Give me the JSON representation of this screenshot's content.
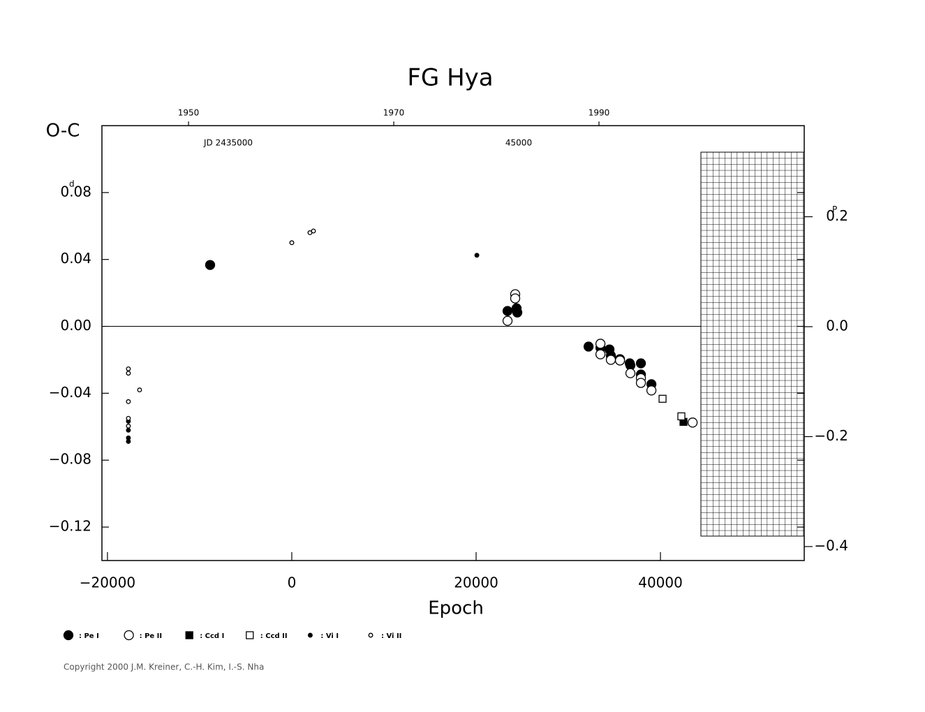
{
  "chart_data": {
    "type": "scatter",
    "title": "FG Hya",
    "y_label": "O-C",
    "x_label": "Epoch",
    "y_unit": "d",
    "y2_unit": "P",
    "xlim": [
      -20600,
      55600
    ],
    "xticks": [
      {
        "value": -20000,
        "label": "−20000"
      },
      0,
      20000,
      40000
    ],
    "ylim": [
      -0.14,
      0.12
    ],
    "yticks": [
      {
        "value": 0.08,
        "label": "0.08"
      },
      {
        "value": 0.04,
        "label": "0.04"
      },
      {
        "value": 0,
        "label": "0.00"
      },
      {
        "value": -0.04,
        "label": "−0.04"
      },
      {
        "value": -0.08,
        "label": "−0.08"
      },
      {
        "value": -0.12,
        "label": "−0.12"
      }
    ],
    "y2lim": [
      -0.4254,
      0.3657
    ],
    "y2ticks": [
      {
        "value": 0.2,
        "label": "0.2"
      },
      {
        "value": 0,
        "label": "0.0"
      },
      {
        "value": -0.2,
        "label": "−0.2"
      },
      {
        "value": -0.4,
        "label": "−0.4"
      }
    ],
    "x2lim": [
      1941.56,
      2010.0
    ],
    "x2ticks": [
      1950,
      1970,
      1990
    ],
    "jd_labels": [
      "JD 2435000",
      "45000"
    ],
    "zero_line": true,
    "series": [
      {
        "name": ": Pe I",
        "marker": "circle",
        "fill": true,
        "size": "large",
        "color": "#000000",
        "x": [
          -8860,
          23410,
          24390,
          24470,
          32200,
          33490,
          34470,
          34620,
          35610,
          36670,
          36740,
          37880,
          37880,
          39020
        ],
        "values": [
          0.0367,
          0.0092,
          0.0108,
          0.0083,
          -0.0121,
          -0.0129,
          -0.0138,
          -0.0175,
          -0.0196,
          -0.0221,
          -0.0233,
          -0.0221,
          -0.0288,
          -0.0346
        ]
      },
      {
        "name": ": Pe II",
        "marker": "circle",
        "fill": false,
        "size": "large",
        "color": "#000000",
        "x": [
          23410,
          24240,
          24240,
          33490,
          33490,
          34620,
          35610,
          36740,
          37880,
          37880,
          39020,
          43490
        ],
        "values": [
          0.0033,
          0.0192,
          0.0167,
          -0.0104,
          -0.0167,
          -0.02,
          -0.0204,
          -0.028,
          -0.031,
          -0.0338,
          -0.0383,
          -0.0575
        ]
      },
      {
        "name": ": Ccd I",
        "marker": "square",
        "fill": true,
        "size": "large",
        "color": "#000000",
        "x": [
          42500
        ],
        "values": [
          -0.0571
        ]
      },
      {
        "name": ": Ccd II",
        "marker": "square",
        "fill": false,
        "size": "large",
        "color": "#000000",
        "x": [
          40230,
          42270
        ],
        "values": [
          -0.0433,
          -0.0538
        ]
      },
      {
        "name": ": Vi I",
        "marker": "circle",
        "fill": true,
        "size": "small",
        "color": "#000000",
        "x": [
          -17730,
          -17730,
          -17730,
          -17730,
          20080
        ],
        "values": [
          -0.0567,
          -0.0621,
          -0.0667,
          -0.0688,
          0.0425
        ]
      },
      {
        "name": ": Vi II",
        "marker": "circle",
        "fill": false,
        "size": "small",
        "color": "#000000",
        "x": [
          -17730,
          -17730,
          -16515,
          -17730,
          -17730,
          -17730,
          0,
          1970,
          2350
        ],
        "values": [
          -0.0254,
          -0.028,
          -0.038,
          -0.045,
          -0.055,
          -0.0596,
          0.05,
          0.056,
          0.057
        ]
      }
    ],
    "copyright": "Copyright 2000 J.M. Kreiner, C.-H. Kim, I.-S. Nha"
  }
}
